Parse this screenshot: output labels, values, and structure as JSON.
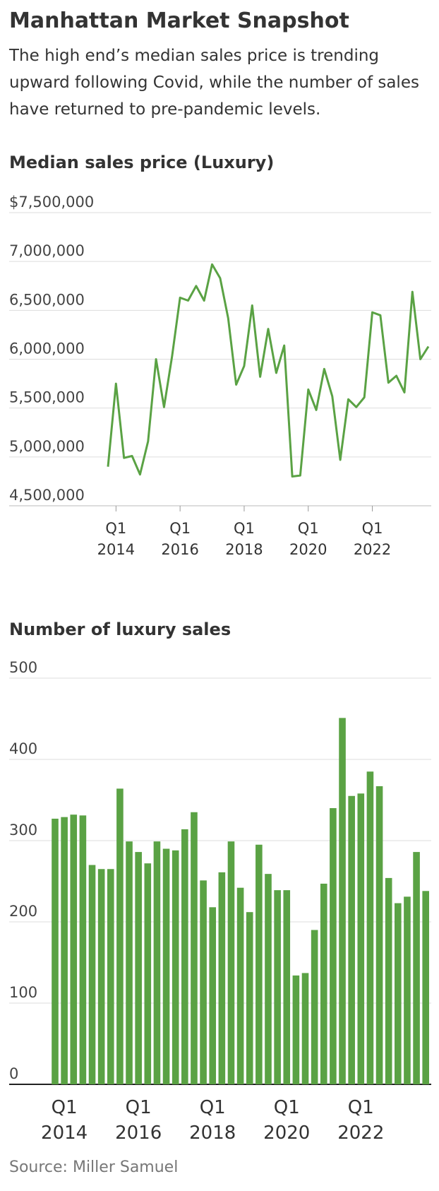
{
  "title": "Manhattan Market Snapshot",
  "subtitle": "The high end’s median sales price is trending upward following Covid, while the number of sales have returned to pre-pandemic levels.",
  "source": "Source: Miller Samuel",
  "chart_data": [
    {
      "type": "line",
      "title": "Median sales price (Luxury)",
      "color": "#5aa244",
      "grid": true,
      "categories": [
        null,
        "Q1 2014",
        null,
        null,
        null,
        null,
        null,
        null,
        null,
        "Q1 2016",
        null,
        null,
        null,
        null,
        null,
        null,
        null,
        "Q1 2018",
        null,
        null,
        null,
        null,
        null,
        null,
        null,
        "Q1 2020",
        null,
        null,
        null,
        null,
        null,
        null,
        null,
        "Q1 2022",
        null,
        null,
        null,
        null,
        null,
        null,
        null
      ],
      "values": [
        4900000,
        5750000,
        4990000,
        5010000,
        4820000,
        5160000,
        6000000,
        5510000,
        6030000,
        6630000,
        6600000,
        6750000,
        6600000,
        6970000,
        6830000,
        6420000,
        5740000,
        5930000,
        6550000,
        5820000,
        6310000,
        5860000,
        6140000,
        4800000,
        4810000,
        5690000,
        5480000,
        5900000,
        5620000,
        4970000,
        5590000,
        5510000,
        5610000,
        6480000,
        6450000,
        5760000,
        5830000,
        5660000,
        6690000,
        6000000,
        6130000
      ],
      "ylim": [
        4500000,
        7500000
      ],
      "yticks": [
        {
          "value": 4500000,
          "label": "4,500,000"
        },
        {
          "value": 5000000,
          "label": "5,000,000"
        },
        {
          "value": 5500000,
          "label": "5,500,000"
        },
        {
          "value": 6000000,
          "label": "6,000,000"
        },
        {
          "value": 6500000,
          "label": "6,500,000"
        },
        {
          "value": 7000000,
          "label": "7,000,000"
        },
        {
          "value": 7500000,
          "label": "$7,500,000"
        }
      ]
    },
    {
      "type": "bar",
      "title": "Number of luxury sales",
      "color": "#5aa244",
      "grid": true,
      "categories": [
        null,
        "Q1 2014",
        null,
        null,
        null,
        null,
        null,
        null,
        null,
        "Q1 2016",
        null,
        null,
        null,
        null,
        null,
        null,
        null,
        "Q1 2018",
        null,
        null,
        null,
        null,
        null,
        null,
        null,
        "Q1 2020",
        null,
        null,
        null,
        null,
        null,
        null,
        null,
        "Q1 2022",
        null,
        null,
        null,
        null,
        null,
        null,
        null
      ],
      "values": [
        327,
        329,
        332,
        331,
        270,
        265,
        265,
        364,
        299,
        286,
        272,
        299,
        290,
        288,
        314,
        335,
        251,
        218,
        261,
        299,
        242,
        212,
        295,
        259,
        239,
        239,
        134,
        137,
        190,
        247,
        340,
        451,
        355,
        358,
        385,
        367,
        254,
        223,
        231,
        286,
        238
      ],
      "ylim": [
        0,
        500
      ],
      "yticks": [
        0,
        100,
        200,
        300,
        400,
        500
      ]
    }
  ]
}
